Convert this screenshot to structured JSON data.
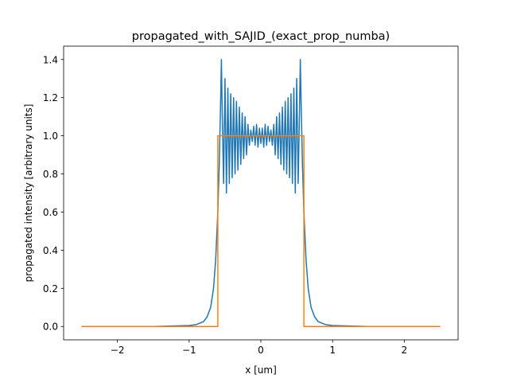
{
  "chart_data": {
    "type": "line",
    "title": "propagated_with_SAJID_(exact_prop_numba)",
    "xlabel": "x [um]",
    "ylabel": "propagated intensity [arbitrary units]",
    "xlim": [
      -2.75,
      2.75
    ],
    "ylim": [
      -0.07,
      1.47
    ],
    "xticks": [
      -2,
      -1,
      0,
      1,
      2
    ],
    "xtick_labels": [
      "−2",
      "−1",
      "0",
      "1",
      "2"
    ],
    "yticks": [
      0.0,
      0.2,
      0.4,
      0.6,
      0.8,
      1.0,
      1.2,
      1.4
    ],
    "ytick_labels": [
      "0.0",
      "0.2",
      "0.4",
      "0.6",
      "0.8",
      "1.0",
      "1.2",
      "1.4"
    ],
    "grid": false,
    "legend": "none",
    "series": [
      {
        "color": "#1f77b4",
        "x": [
          -2.5,
          -1.5,
          -1.0,
          -0.9,
          -0.8,
          -0.75,
          -0.7,
          -0.66,
          -0.63,
          -0.6,
          -0.58,
          -0.56,
          -0.55,
          -0.54,
          -0.52,
          -0.5,
          -0.48,
          -0.46,
          -0.44,
          -0.42,
          -0.4,
          -0.38,
          -0.36,
          -0.34,
          -0.32,
          -0.3,
          -0.28,
          -0.26,
          -0.24,
          -0.22,
          -0.2,
          -0.18,
          -0.16,
          -0.14,
          -0.12,
          -0.1,
          -0.08,
          -0.06,
          -0.04,
          -0.02,
          0.0,
          0.02,
          0.04,
          0.06,
          0.08,
          0.1,
          0.12,
          0.14,
          0.16,
          0.18,
          0.2,
          0.22,
          0.24,
          0.26,
          0.28,
          0.3,
          0.32,
          0.34,
          0.36,
          0.38,
          0.4,
          0.42,
          0.44,
          0.46,
          0.48,
          0.5,
          0.52,
          0.54,
          0.55,
          0.56,
          0.58,
          0.6,
          0.63,
          0.66,
          0.7,
          0.75,
          0.8,
          0.9,
          1.0,
          1.5,
          2.5
        ],
        "y": [
          0.0,
          0.0,
          0.005,
          0.01,
          0.025,
          0.05,
          0.1,
          0.2,
          0.35,
          0.6,
          0.85,
          1.2,
          1.4,
          1.15,
          0.75,
          1.3,
          0.7,
          1.25,
          0.75,
          1.22,
          0.78,
          1.2,
          0.8,
          1.18,
          0.82,
          1.15,
          0.85,
          1.12,
          0.88,
          1.1,
          0.9,
          1.06,
          0.95,
          1.03,
          0.97,
          1.05,
          0.95,
          1.06,
          0.94,
          1.04,
          0.96,
          1.04,
          0.94,
          1.06,
          0.95,
          1.05,
          0.97,
          1.03,
          0.95,
          1.06,
          0.9,
          1.1,
          0.88,
          1.12,
          0.85,
          1.15,
          0.82,
          1.18,
          0.8,
          1.2,
          0.78,
          1.22,
          0.75,
          1.25,
          0.7,
          1.3,
          0.75,
          1.15,
          1.4,
          1.2,
          0.85,
          0.6,
          0.35,
          0.2,
          0.1,
          0.05,
          0.025,
          0.01,
          0.005,
          0.0,
          0.0
        ]
      },
      {
        "color": "#ff7f0e",
        "x": [
          -2.5,
          -0.6,
          -0.6,
          0.6,
          0.6,
          2.5
        ],
        "y": [
          0.0,
          0.0,
          1.0,
          1.0,
          0.0,
          0.0
        ]
      }
    ]
  }
}
